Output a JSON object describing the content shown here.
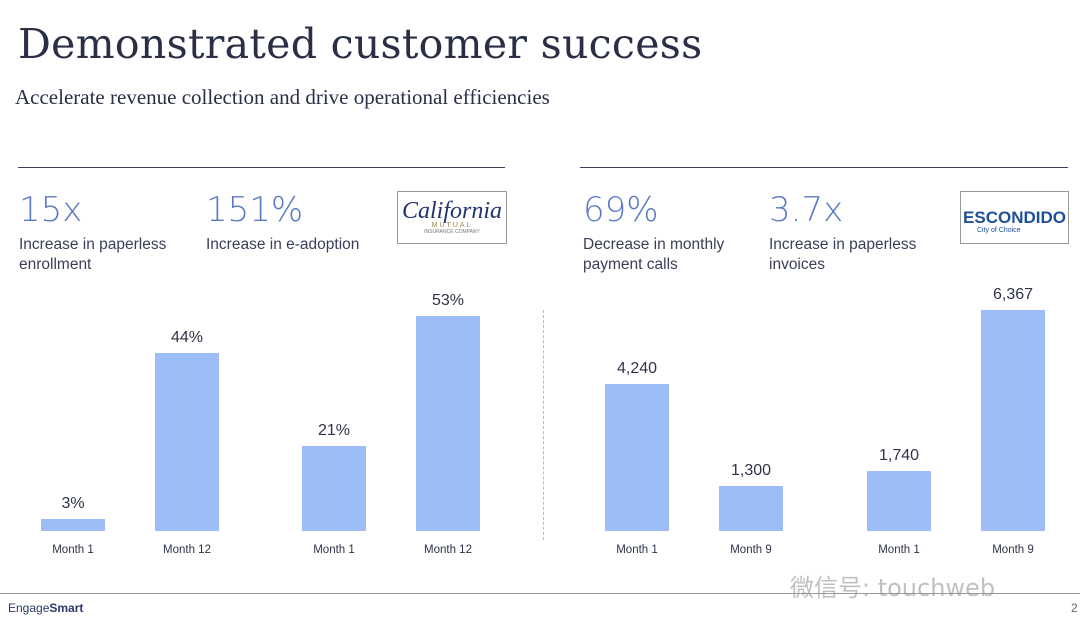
{
  "title": "Demonstrated customer success",
  "subtitle": "Accelerate revenue collection and drive operational efficiencies",
  "left": {
    "stats": [
      {
        "value": "15x",
        "label": "Increase in paperless enrollment"
      },
      {
        "value": "151%",
        "label": "Increase in e-adoption"
      }
    ],
    "logo": {
      "name": "California",
      "sub": "MUTUAL",
      "sub2": "INSURANCE COMPANY"
    }
  },
  "right": {
    "stats": [
      {
        "value": "69%",
        "label": "Decrease in monthly payment calls"
      },
      {
        "value": "3.7x",
        "label": "Increase in paperless invoices"
      }
    ],
    "logo": {
      "name": "ESCONDIDO",
      "sub": "City of Choice"
    }
  },
  "chart_data": [
    {
      "type": "bar",
      "categories": [
        "Month 1",
        "Month 12"
      ],
      "values": [
        3,
        44
      ],
      "labels": [
        "3%",
        "44%"
      ],
      "unit": "%"
    },
    {
      "type": "bar",
      "categories": [
        "Month 1",
        "Month 12"
      ],
      "values": [
        21,
        53
      ],
      "labels": [
        "21%",
        "53%"
      ],
      "unit": "%"
    },
    {
      "type": "bar",
      "categories": [
        "Month 1",
        "Month 9"
      ],
      "values": [
        4240,
        1300
      ],
      "labels": [
        "4,240",
        "1,300"
      ]
    },
    {
      "type": "bar",
      "categories": [
        "Month 1",
        "Month 9"
      ],
      "values": [
        1740,
        6367
      ],
      "labels": [
        "1,740",
        "6,367"
      ]
    }
  ],
  "footer": {
    "brand_a": "Engage",
    "brand_b": "Smart",
    "page": "2",
    "watermark": "微信号: touchweb"
  },
  "colors": {
    "bar": "#9dbdf7",
    "accent": "#5b7ac4"
  }
}
